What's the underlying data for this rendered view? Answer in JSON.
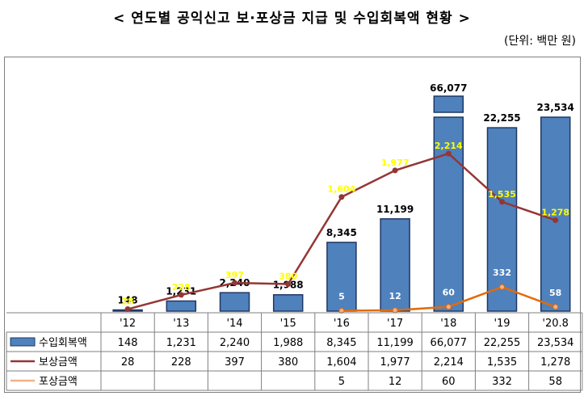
{
  "title": "< 연도별 공익신고 보·포상금 지급 및 수입회복액 현황 >",
  "unit": "(단위: 백만 원)",
  "colors": {
    "bar": "#4f81bd",
    "bar_border": "#1f3864",
    "reward": "#943634",
    "prize": "#e26b0a",
    "prize_marker": "#f4b183",
    "label_yellow": "#ffff00"
  },
  "chart_data": {
    "type": "bar",
    "categories": [
      "'12",
      "'13",
      "'14",
      "'15",
      "'16",
      "'17",
      "'18",
      "'19",
      "'20.8"
    ],
    "axis_break": true,
    "series": [
      {
        "name": "수입회복액",
        "type": "bar",
        "values": [
          148,
          1231,
          2240,
          1988,
          8345,
          11199,
          66077,
          22255,
          23534
        ],
        "labels": [
          "148",
          "1,231",
          "2,240",
          "1,988",
          "8,345",
          "11,199",
          "66,077",
          "22,255",
          "23,534"
        ]
      },
      {
        "name": "보상금액",
        "type": "line",
        "values": [
          28,
          228,
          397,
          380,
          1604,
          1977,
          2214,
          1535,
          1278
        ],
        "labels": [
          "28",
          "228",
          "397",
          "380",
          "1,604",
          "1,977",
          "2,214",
          "1,535",
          "1,278"
        ]
      },
      {
        "name": "포상금액",
        "type": "line",
        "values": [
          null,
          null,
          null,
          null,
          5,
          12,
          60,
          332,
          58
        ],
        "labels": [
          "",
          "",
          "",
          "",
          "5",
          "12",
          "60",
          "332",
          "58"
        ]
      }
    ]
  }
}
